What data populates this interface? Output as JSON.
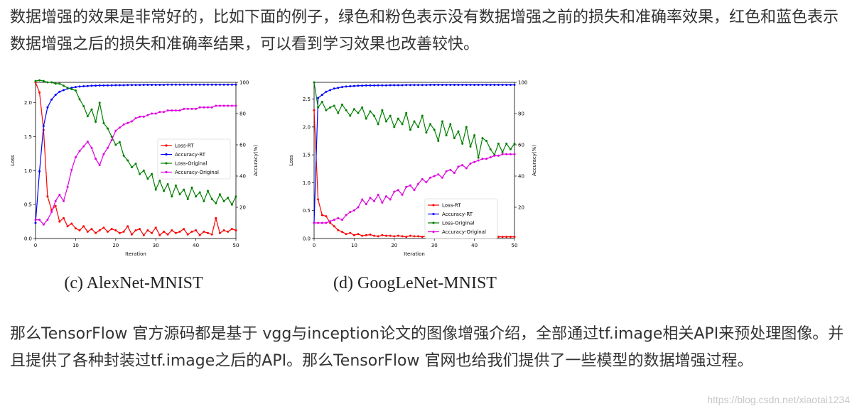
{
  "paragraphs": {
    "intro": "数据增强的效果是非常好的，比如下面的例子，绿色和粉色表示没有数据增强之前的损失和准确率效果，红色和蓝色表示数据增强之后的损失和准确率结果，可以看到学习效果也改善较快。",
    "outro": "那么TensorFlow 官方源码都是基于 vgg与inception论文的图像增强介绍，全部通过tf.image相关API来预处理图像。并且提供了各种封装过tf.image之后的API。那么TensorFlow 官网也给我们提供了一些模型的数据增强过程。"
  },
  "watermark": "https://blog.csdn.net/xiaotai1234",
  "colors": {
    "loss_rt": "#ff0000",
    "accuracy_rt": "#0000ff",
    "loss_original": "#008000",
    "accuracy_original": "#e000e0"
  },
  "chart_data": [
    {
      "type": "line",
      "caption": "(c) AlexNet-MNIST",
      "xlabel": "Iteration",
      "ylabel_left": "Loss",
      "ylabel_right": "Accuracy(%)",
      "xlim": [
        0,
        50
      ],
      "ylim_left": [
        0,
        2.3
      ],
      "ylim_right": [
        0,
        100
      ],
      "xticks": [
        0,
        10,
        20,
        30,
        40,
        50
      ],
      "yticks_left": [
        0.0,
        0.5,
        1.0,
        1.5,
        2.0
      ],
      "yticks_right": [
        20,
        40,
        60,
        80,
        100
      ],
      "legend": "center-right",
      "x": [
        0,
        1,
        2,
        3,
        4,
        5,
        6,
        7,
        8,
        9,
        10,
        11,
        12,
        13,
        14,
        15,
        16,
        17,
        18,
        19,
        20,
        21,
        22,
        23,
        24,
        25,
        26,
        27,
        28,
        29,
        30,
        31,
        32,
        33,
        34,
        35,
        36,
        37,
        38,
        39,
        40,
        41,
        42,
        43,
        44,
        45,
        46,
        47,
        48,
        49,
        50
      ],
      "series": [
        {
          "name": "Loss-RT",
          "axis": "left",
          "color": "#ff0000",
          "values": [
            2.3,
            2.15,
            1.6,
            0.62,
            0.42,
            0.48,
            0.25,
            0.3,
            0.18,
            0.22,
            0.15,
            0.12,
            0.18,
            0.1,
            0.14,
            0.08,
            0.12,
            0.16,
            0.1,
            0.14,
            0.12,
            0.08,
            0.1,
            0.18,
            0.06,
            0.12,
            0.14,
            0.05,
            0.12,
            0.08,
            0.16,
            0.05,
            0.1,
            0.06,
            0.12,
            0.08,
            0.1,
            0.14,
            0.06,
            0.1,
            0.12,
            0.05,
            0.1,
            0.08,
            0.06,
            0.3,
            0.08,
            0.12,
            0.1,
            0.14,
            0.12
          ]
        },
        {
          "name": "Accuracy-RT",
          "axis": "right",
          "color": "#0000ff",
          "values": [
            10,
            43,
            72,
            84,
            89,
            92,
            94,
            95,
            96,
            96.5,
            97,
            97.3,
            97.5,
            97.7,
            97.8,
            97.9,
            98,
            98,
            98.1,
            98.1,
            98.2,
            98.2,
            98.2,
            98.3,
            98.3,
            98.3,
            98.3,
            98.4,
            98.4,
            98.4,
            98.4,
            98.4,
            98.4,
            98.5,
            98.5,
            98.5,
            98.5,
            98.5,
            98.5,
            98.5,
            98.5,
            98.5,
            98.5,
            98.5,
            98.5,
            98.5,
            98.5,
            98.5,
            98.5,
            98.5,
            98.5
          ]
        },
        {
          "name": "Loss-Original",
          "axis": "left",
          "color": "#008000",
          "values": [
            2.32,
            2.33,
            2.32,
            2.3,
            2.3,
            2.28,
            2.28,
            2.25,
            2.22,
            2.2,
            2.18,
            2.05,
            1.95,
            1.8,
            1.9,
            1.72,
            2.0,
            1.7,
            1.62,
            1.5,
            1.38,
            1.42,
            1.22,
            1.15,
            1.05,
            1.1,
            0.95,
            1.0,
            0.88,
            0.95,
            0.72,
            0.85,
            0.7,
            0.8,
            0.62,
            0.78,
            0.65,
            0.72,
            0.58,
            0.75,
            0.62,
            0.68,
            0.55,
            0.7,
            0.58,
            0.52,
            0.65,
            0.55,
            0.6,
            0.5,
            0.62
          ]
        },
        {
          "name": "Accuracy-Original",
          "axis": "right",
          "color": "#e000e0",
          "values": [
            12,
            12,
            9,
            12,
            17,
            24,
            28,
            24,
            33,
            44,
            52,
            56,
            59,
            62,
            58,
            51,
            47,
            54,
            58,
            63,
            69,
            71,
            73,
            74,
            75,
            77,
            78,
            78,
            79,
            80,
            80,
            81,
            81,
            82,
            82,
            82,
            82,
            83,
            83,
            83,
            83,
            84,
            84,
            84,
            84,
            85,
            85,
            85,
            85,
            85,
            85
          ]
        }
      ]
    },
    {
      "type": "line",
      "caption": "(d) GoogLeNet-MNIST",
      "xlabel": "Iteration",
      "ylabel_left": "Loss",
      "ylabel_right": "Accuracy(%)",
      "xlim": [
        0,
        50
      ],
      "ylim_left": [
        0,
        2.8
      ],
      "ylim_right": [
        0,
        100
      ],
      "xticks": [
        0,
        10,
        20,
        30,
        40,
        50
      ],
      "yticks_left": [
        0.0,
        0.5,
        1.0,
        1.5,
        2.0,
        2.5
      ],
      "yticks_right": [
        20,
        40,
        60,
        80,
        100
      ],
      "legend": "bottom-center",
      "x": [
        0,
        1,
        2,
        3,
        4,
        5,
        6,
        7,
        8,
        9,
        10,
        11,
        12,
        13,
        14,
        15,
        16,
        17,
        18,
        19,
        20,
        21,
        22,
        23,
        24,
        25,
        26,
        27,
        28,
        29,
        30,
        31,
        32,
        33,
        34,
        35,
        36,
        37,
        38,
        39,
        40,
        41,
        42,
        43,
        44,
        45,
        46,
        47,
        48,
        49,
        50
      ],
      "series": [
        {
          "name": "Loss-RT",
          "axis": "left",
          "color": "#ff0000",
          "values": [
            2.3,
            0.7,
            0.42,
            0.4,
            0.28,
            0.22,
            0.15,
            0.12,
            0.08,
            0.1,
            0.06,
            0.08,
            0.05,
            0.06,
            0.07,
            0.05,
            0.04,
            0.06,
            0.05,
            0.05,
            0.04,
            0.05,
            0.04,
            0.03,
            0.05,
            0.04,
            0.04,
            0.03,
            0.04,
            0.03,
            0.04,
            0.05,
            0.03,
            0.04,
            0.05,
            0.03,
            0.04,
            0.03,
            0.04,
            0.03,
            0.04,
            0.03,
            0.03,
            0.04,
            0.03,
            0.03,
            0.03,
            0.03,
            0.03,
            0.03,
            0.03
          ]
        },
        {
          "name": "Accuracy-RT",
          "axis": "right",
          "color": "#0000ff",
          "values": [
            10,
            90,
            92,
            94,
            95,
            96,
            96.5,
            97,
            97.3,
            97.5,
            97.7,
            97.8,
            97.9,
            98,
            98,
            98,
            98.1,
            98.1,
            98.1,
            98.2,
            98.2,
            98.2,
            98.2,
            98.3,
            98.3,
            98.3,
            98.3,
            98.3,
            98.3,
            98.4,
            98.4,
            98.4,
            98.4,
            98.4,
            98.4,
            98.4,
            98.4,
            98.4,
            98.4,
            98.4,
            98.4,
            98.4,
            98.4,
            98.4,
            98.4,
            98.4,
            98.4,
            98.4,
            98.4,
            98.4,
            98.4
          ]
        },
        {
          "name": "Loss-Original",
          "axis": "left",
          "color": "#008000",
          "values": [
            2.8,
            2.35,
            2.45,
            2.3,
            2.35,
            2.38,
            2.25,
            2.4,
            2.3,
            2.2,
            2.32,
            2.25,
            2.35,
            2.15,
            2.28,
            2.2,
            2.05,
            2.3,
            2.1,
            2.2,
            2.0,
            2.15,
            2.05,
            2.25,
            1.95,
            2.1,
            2.0,
            2.2,
            1.9,
            2.05,
            1.95,
            1.75,
            2.1,
            1.85,
            2.05,
            1.8,
            1.92,
            1.7,
            2.0,
            1.65,
            1.85,
            1.45,
            1.8,
            1.75,
            1.6,
            1.5,
            1.7,
            1.55,
            1.7,
            1.6,
            1.7
          ]
        },
        {
          "name": "Accuracy-Original",
          "axis": "right",
          "color": "#e000e0",
          "values": [
            10,
            10,
            10,
            10,
            11,
            12,
            13,
            12,
            15,
            17,
            18,
            20,
            25,
            22,
            26,
            24,
            28,
            23,
            27,
            25,
            30,
            31,
            28,
            33,
            34,
            31,
            35,
            38,
            36,
            39,
            40,
            41,
            39,
            43,
            44,
            42,
            46,
            47,
            45,
            48,
            49,
            50,
            51,
            51,
            52,
            53,
            53,
            54,
            54,
            54,
            54
          ]
        }
      ]
    }
  ]
}
